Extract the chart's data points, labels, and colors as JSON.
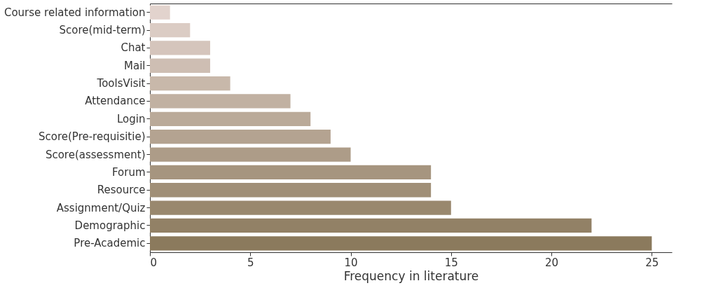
{
  "chart_data": {
    "type": "bar",
    "orientation": "horizontal",
    "xlabel": "Frequency in literature",
    "categories": [
      "Course related information",
      "Score(mid-term)",
      "Chat",
      "Mail",
      "ToolsVisit",
      "Attendance",
      "Login",
      "Score(Pre-requisitie)",
      "Score(assessment)",
      "Forum",
      "Resource",
      "Assignment/Quiz",
      "Demographic",
      "Pre-Academic"
    ],
    "values": [
      1,
      2,
      3,
      3,
      4,
      7,
      8,
      9,
      10,
      14,
      14,
      15,
      22,
      25
    ],
    "colors": [
      "#e2d3cd",
      "#dbccc4",
      "#d5c5bc",
      "#cebeb3",
      "#c8b8aa",
      "#c1b1a2",
      "#baaa99",
      "#b4a391",
      "#ad9c88",
      "#a6957f",
      "#a08f77",
      "#99886e",
      "#928166",
      "#8b7a5d"
    ],
    "xlim": [
      0,
      26
    ],
    "xticks": [
      0,
      5,
      10,
      15,
      20,
      25
    ],
    "grid": false
  }
}
